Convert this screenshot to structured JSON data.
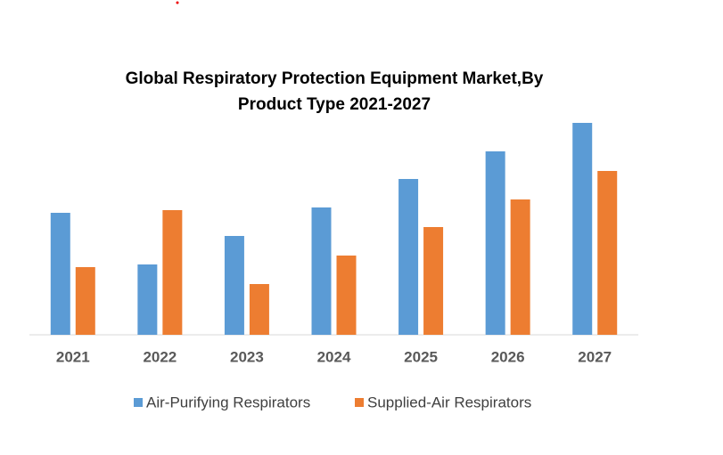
{
  "chart_data": {
    "type": "bar",
    "title": "Global Respiratory Protection Equipment Market,By\nProduct Type 2021-2027",
    "categories": [
      "2021",
      "2022",
      "2023",
      "2024",
      "2025",
      "2026",
      "2027"
    ],
    "series": [
      {
        "name": "Air-Purifying Respirators",
        "color": "#5b9bd5",
        "values": [
          137,
          79,
          111,
          143,
          175,
          206,
          238
        ]
      },
      {
        "name": "Supplied-Air Respirators",
        "color": "#ed7d31",
        "values": [
          76,
          140,
          57,
          89,
          121,
          152,
          184
        ]
      }
    ],
    "ylim": [
      0,
      250
    ]
  }
}
